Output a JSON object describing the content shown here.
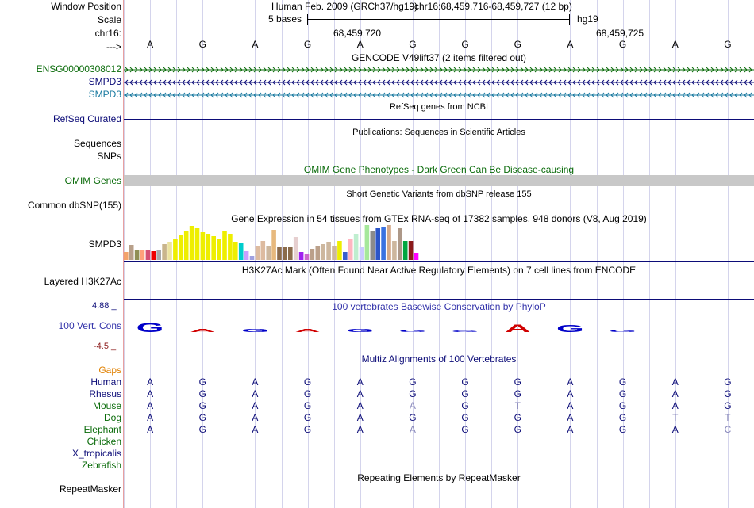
{
  "header": {
    "window_position_label": "Window Position",
    "scale_label": "Scale",
    "chrom_label": "chr16:",
    "arrow_label": "--->",
    "assembly_text": "Human Feb. 2009 (GRCh37/hg19)",
    "position_text": "chr16:68,459,716-68,459,727 (12 bp)",
    "scale_text": "5 bases",
    "db_text": "hg19",
    "coord_left": "68,459,720",
    "coord_right": "68,459,725",
    "bases": [
      "A",
      "G",
      "A",
      "G",
      "A",
      "G",
      "G",
      "G",
      "A",
      "G",
      "A",
      "G"
    ]
  },
  "gencode": {
    "title": "GENCODE V49lift37 (2 items filtered out)",
    "items": [
      {
        "label": "ENSG00000308012",
        "color": "#0a6b0a",
        "strand": "+"
      },
      {
        "label": "SMPD3",
        "color": "#0c0c78",
        "strand": "-"
      },
      {
        "label": "SMPD3",
        "color": "#1a7aa0",
        "strand": "-"
      }
    ]
  },
  "refseq": {
    "title": "RefSeq genes from NCBI",
    "label": "RefSeq Curated",
    "color": "#0c0c78"
  },
  "publications": {
    "title": "Publications: Sequences in Scientific Articles",
    "label": "Sequences"
  },
  "snps_label": "SNPs",
  "omim": {
    "title": "OMIM Gene Phenotypes - Dark Green Can Be Disease-causing",
    "label": "OMIM Genes",
    "color": "#0a6b0a"
  },
  "dbsnp": {
    "title": "Short Genetic Variants from dbSNP release 155",
    "label": "Common dbSNP(155)"
  },
  "gtex": {
    "title": "Gene Expression in 54 tissues from GTEx RNA-seq of 17382 samples, 948 donors (V8, Aug 2019)",
    "label": "SMPD3",
    "bars": [
      {
        "v": 0.22,
        "c": "#f3a36b"
      },
      {
        "v": 0.44,
        "c": "#b8a08a"
      },
      {
        "v": 0.3,
        "c": "#8f8f55"
      },
      {
        "v": 0.3,
        "c": "#ffa07a"
      },
      {
        "v": 0.3,
        "c": "#d54e72"
      },
      {
        "v": 0.25,
        "c": "#f00000"
      },
      {
        "v": 0.3,
        "c": "#a9a9a9"
      },
      {
        "v": 0.45,
        "c": "#c9b58c"
      },
      {
        "v": 0.52,
        "c": "#ece3a0"
      },
      {
        "v": 0.6,
        "c": "#eeee00"
      },
      {
        "v": 0.7,
        "c": "#eeee00"
      },
      {
        "v": 0.85,
        "c": "#eeee00"
      },
      {
        "v": 0.98,
        "c": "#eeee00"
      },
      {
        "v": 0.92,
        "c": "#eeee00"
      },
      {
        "v": 0.8,
        "c": "#eeee00"
      },
      {
        "v": 0.76,
        "c": "#eeee00"
      },
      {
        "v": 0.68,
        "c": "#eeee00"
      },
      {
        "v": 0.6,
        "c": "#eeee00"
      },
      {
        "v": 0.82,
        "c": "#eeee00"
      },
      {
        "v": 0.76,
        "c": "#eeee00"
      },
      {
        "v": 0.52,
        "c": "#eeee00"
      },
      {
        "v": 0.48,
        "c": "#00cdcd"
      },
      {
        "v": 0.26,
        "c": "#c9a0ff"
      },
      {
        "v": 0.12,
        "c": "#a0a0e0"
      },
      {
        "v": 0.4,
        "c": "#ddbba0"
      },
      {
        "v": 0.55,
        "c": "#ddbba0"
      },
      {
        "v": 0.42,
        "c": "#cdb79e"
      },
      {
        "v": 0.86,
        "c": "#e7b97e"
      },
      {
        "v": 0.36,
        "c": "#8b6b4c"
      },
      {
        "v": 0.36,
        "c": "#8b6b4c"
      },
      {
        "v": 0.36,
        "c": "#8b6b4c"
      },
      {
        "v": 0.65,
        "c": "#e6cfcf"
      },
      {
        "v": 0.22,
        "c": "#a020f0"
      },
      {
        "v": 0.16,
        "c": "#cc66cc"
      },
      {
        "v": 0.32,
        "c": "#bba08a"
      },
      {
        "v": 0.4,
        "c": "#bba08a"
      },
      {
        "v": 0.45,
        "c": "#cdb79e"
      },
      {
        "v": 0.52,
        "c": "#cdb79e"
      },
      {
        "v": 0.4,
        "c": "#cdb79e"
      },
      {
        "v": 0.55,
        "c": "#eeee00"
      },
      {
        "v": 0.22,
        "c": "#3a5fcd"
      },
      {
        "v": 0.62,
        "c": "#ffb6c1"
      },
      {
        "v": 0.75,
        "c": "#bfeecf"
      },
      {
        "v": 0.36,
        "c": "#ccccff"
      },
      {
        "v": 1.0,
        "c": "#a6e89b"
      },
      {
        "v": 0.85,
        "c": "#8b8b8b"
      },
      {
        "v": 0.9,
        "c": "#2b55c8"
      },
      {
        "v": 0.95,
        "c": "#3a72e0"
      },
      {
        "v": 1.0,
        "c": "#d3a98a"
      },
      {
        "v": 0.55,
        "c": "#cdb79e"
      },
      {
        "v": 0.9,
        "c": "#ad9888"
      },
      {
        "v": 0.55,
        "c": "#00a640"
      },
      {
        "v": 0.55,
        "c": "#8b1a1a"
      },
      {
        "v": 0.2,
        "c": "#ff00ff"
      }
    ]
  },
  "h3k27ac": {
    "title": "H3K27Ac Mark (Often Found Near Active Regulatory Elements) on 7 cell lines from ENCODE",
    "label": "Layered H3K27Ac"
  },
  "phylop": {
    "title": "100 vertebrates Basewise Conservation by PhyloP",
    "label": "100 Vert. Cons",
    "max_label": "4.88 _",
    "min_label": "-4.5 _",
    "glyphs": [
      {
        "b": "G",
        "c": "#0000c8",
        "h": 1.0
      },
      {
        "b": "A",
        "c": "#d00000",
        "h": 0.35
      },
      {
        "b": "G",
        "c": "#0000c8",
        "h": 0.35
      },
      {
        "b": "A",
        "c": "#d00000",
        "h": 0.35
      },
      {
        "b": "G",
        "c": "#0000c8",
        "h": 0.3
      },
      {
        "b": "G",
        "c": "#0000c8",
        "h": 0.22
      },
      {
        "b": "G",
        "c": "#0000c8",
        "h": 0.18
      },
      {
        "b": "A",
        "c": "#d00000",
        "h": 0.8
      },
      {
        "b": "G",
        "c": "#0000c8",
        "h": 0.75
      },
      {
        "b": "G",
        "c": "#0000c8",
        "h": 0.2
      }
    ]
  },
  "multiz": {
    "title": "Multiz Alignments of 100 Vertebrates",
    "gaps_label": "Gaps",
    "species": [
      {
        "name": "Human",
        "color": "#0c0c78",
        "seq": [
          "A",
          "G",
          "A",
          "G",
          "A",
          "G",
          "G",
          "G",
          "A",
          "G",
          "A",
          "G"
        ],
        "faint": []
      },
      {
        "name": "Rhesus",
        "color": "#0c0c78",
        "seq": [
          "A",
          "G",
          "A",
          "G",
          "A",
          "G",
          "G",
          "G",
          "A",
          "G",
          "A",
          "G"
        ],
        "faint": []
      },
      {
        "name": "Mouse",
        "color": "#0a6b0a",
        "seq": [
          "A",
          "G",
          "A",
          "G",
          "A",
          "A",
          "G",
          "T",
          "A",
          "G",
          "A",
          "G"
        ],
        "faint": [
          5,
          7
        ]
      },
      {
        "name": "Dog",
        "color": "#0a6b0a",
        "seq": [
          "A",
          "G",
          "A",
          "G",
          "A",
          "G",
          "G",
          "G",
          "A",
          "G",
          "T",
          "T"
        ],
        "faint": [
          10,
          11
        ]
      },
      {
        "name": "Elephant",
        "color": "#0a6b0a",
        "seq": [
          "A",
          "G",
          "A",
          "G",
          "A",
          "A",
          "G",
          "G",
          "A",
          "G",
          "A",
          "C"
        ],
        "faint": [
          5,
          11
        ]
      },
      {
        "name": "Chicken",
        "color": "#0a6b0a",
        "seq": [],
        "faint": []
      },
      {
        "name": "X_tropicalis",
        "color": "#0c0c78",
        "seq": [],
        "faint": []
      },
      {
        "name": "Zebrafish",
        "color": "#0a6b0a",
        "seq": [],
        "faint": []
      }
    ]
  },
  "repeatmasker": {
    "title": "Repeating Elements by RepeatMasker",
    "label": "RepeatMasker"
  },
  "colors": {
    "border": "#e8a0a0",
    "grid": "#d4d4ec",
    "dark_blue": "#0c0c78",
    "green": "#0a6b0a",
    "phylop_title": "#3333aa",
    "maroon": "#8b1a1a",
    "omim_bar": "#c8c8c8"
  }
}
